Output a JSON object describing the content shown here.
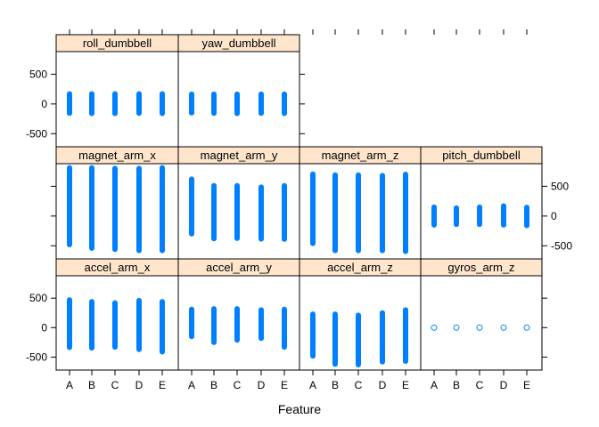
{
  "chart_data": {
    "type": "strip",
    "title": "",
    "xlabel": "Feature",
    "ylabel": "",
    "categories": [
      "A",
      "B",
      "C",
      "D",
      "E"
    ],
    "ylim": [
      -720,
      880
    ],
    "yticks": [
      -500,
      0,
      500
    ],
    "y_tick_labels": [
      "-500",
      "0",
      "500"
    ],
    "colors": {
      "points": "#0080ff",
      "strip": "#ffe5cc",
      "frame": "#000000"
    },
    "panels": [
      {
        "name": "roll_dumbbell",
        "min": [
          -155,
          -160,
          -160,
          -155,
          -160
        ],
        "max": [
          170,
          170,
          170,
          170,
          170
        ]
      },
      {
        "name": "yaw_dumbbell",
        "min": [
          -150,
          -155,
          -160,
          -155,
          -160
        ],
        "max": [
          165,
          165,
          165,
          165,
          165
        ]
      },
      {
        "name": "magnet_arm_x",
        "min": [
          -480,
          -540,
          -560,
          -580,
          -580
        ],
        "max": [
          810,
          810,
          800,
          800,
          810
        ]
      },
      {
        "name": "magnet_arm_y",
        "min": [
          -300,
          -380,
          -375,
          -385,
          -390
        ],
        "max": [
          620,
          510,
          510,
          485,
          510
        ]
      },
      {
        "name": "magnet_arm_z",
        "min": [
          -460,
          -580,
          -580,
          -580,
          -595
        ],
        "max": [
          705,
          690,
          690,
          680,
          700
        ]
      },
      {
        "name": "pitch_dumbbell",
        "min": [
          -150,
          -140,
          -140,
          -150,
          -160
        ],
        "max": [
          150,
          135,
          150,
          170,
          145
        ]
      },
      {
        "name": "accel_arm_x",
        "min": [
          -335,
          -345,
          -330,
          -370,
          -410
        ],
        "max": [
          470,
          440,
          420,
          460,
          440
        ]
      },
      {
        "name": "accel_arm_y",
        "min": [
          -150,
          -250,
          -210,
          -180,
          -330
        ],
        "max": [
          310,
          320,
          320,
          300,
          310
        ]
      },
      {
        "name": "accel_arm_z",
        "min": [
          -480,
          -620,
          -630,
          -580,
          -570
        ],
        "max": [
          230,
          230,
          210,
          250,
          300
        ]
      },
      {
        "name": "gyros_arm_z",
        "min": [
          0,
          0,
          0,
          0,
          0
        ],
        "max": [
          0,
          0,
          0,
          0,
          0
        ]
      }
    ]
  }
}
